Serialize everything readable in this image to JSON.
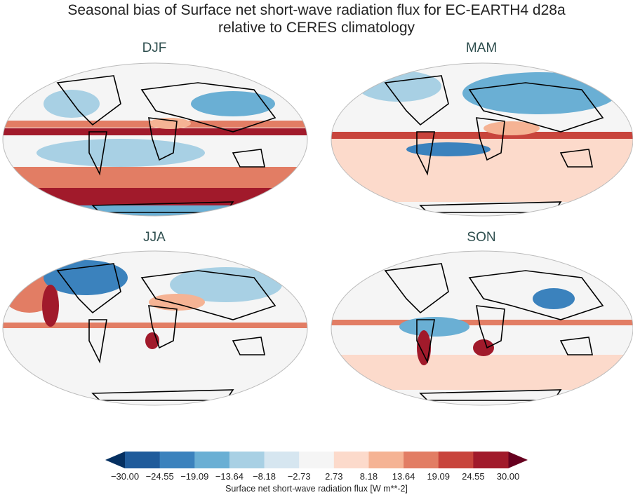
{
  "title_line1": "Seasonal bias of Surface net short-wave radiation flux for EC-EARTH4 d28a",
  "title_line2": "relative to CERES climatology",
  "panels": [
    {
      "season": "DJF"
    },
    {
      "season": "MAM"
    },
    {
      "season": "JJA"
    },
    {
      "season": "SON"
    }
  ],
  "colorbar": {
    "label": "Surface net short-wave radiation flux [W m**-2]",
    "ticks": [
      "−30.00",
      "−24.55",
      "−19.09",
      "−13.64",
      "−8.18",
      "−2.73",
      "2.73",
      "8.18",
      "13.64",
      "19.09",
      "24.55",
      "30.00"
    ],
    "range": [
      -30,
      30
    ],
    "extend": "both",
    "colors": [
      "#1f5b9b",
      "#3b82bd",
      "#6aafd4",
      "#a8d0e4",
      "#d6e6f0",
      "#f5f5f5",
      "#fcdacb",
      "#f5b394",
      "#e27d64",
      "#c8443c",
      "#a11a2b"
    ],
    "under_color": "#053061",
    "over_color": "#67001f"
  },
  "projection": "Robinson",
  "colormap": "RdBu_r"
}
